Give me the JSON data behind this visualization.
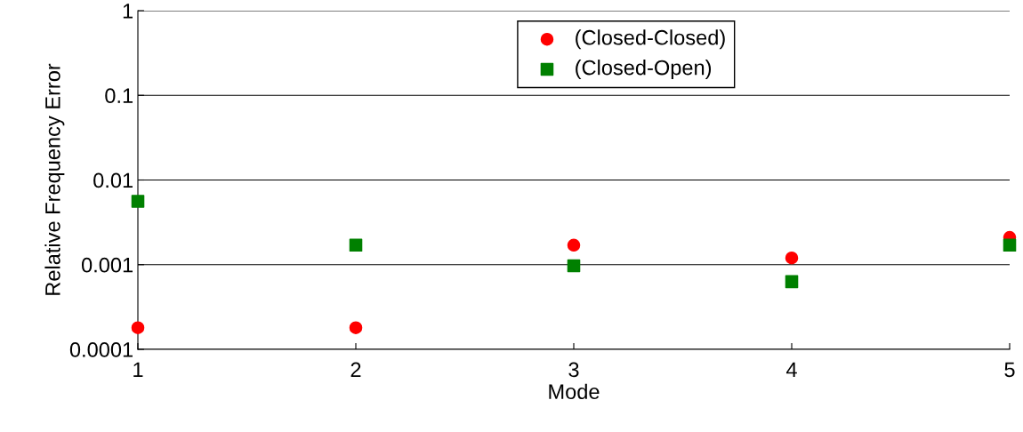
{
  "chart_data": {
    "type": "scatter",
    "xlabel": "Mode",
    "ylabel": "Relative Frequency Error",
    "x": [
      1,
      2,
      3,
      4,
      5
    ],
    "series": [
      {
        "name": "(Closed-Closed)",
        "color": "#ff0000",
        "marker": "circle",
        "values": [
          0.00018,
          0.00018,
          0.0017,
          0.0012,
          0.0021
        ]
      },
      {
        "name": "(Closed-Open)",
        "color": "#008000",
        "marker": "square",
        "values": [
          0.0056,
          0.0017,
          0.00097,
          0.00063,
          0.0017
        ]
      }
    ],
    "log": "y",
    "xlim": [
      1,
      5
    ],
    "xticks": [
      1,
      2,
      3,
      4,
      5
    ],
    "ylim": [
      0.0001,
      1
    ],
    "yticks": [
      0.0001,
      0.001,
      0.01,
      0.1,
      1
    ],
    "grid": "y",
    "legend": "top"
  }
}
